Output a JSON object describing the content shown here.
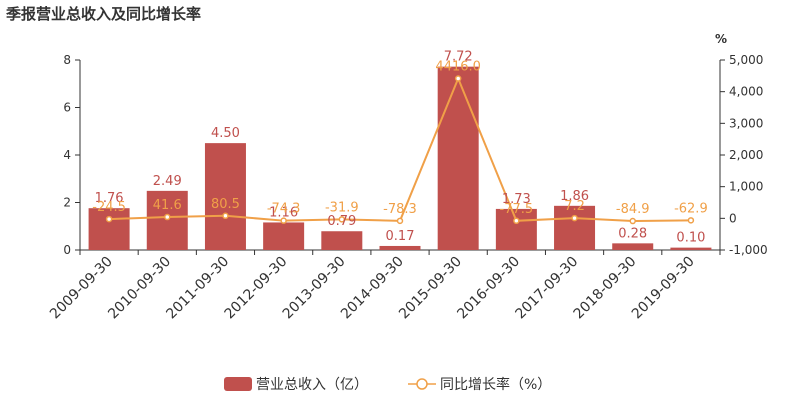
{
  "chart_data": {
    "type": "bar+line",
    "title": "季报营业总收入及同比增长率",
    "categories": [
      "2009-09-30",
      "2010-09-30",
      "2011-09-30",
      "2012-09-30",
      "2013-09-30",
      "2014-09-30",
      "2015-09-30",
      "2016-09-30",
      "2017-09-30",
      "2018-09-30",
      "2019-09-30"
    ],
    "series": [
      {
        "name": "营业总收入（亿）",
        "type": "bar",
        "axis": "left",
        "color": "#c0504d",
        "values": [
          1.76,
          2.49,
          4.5,
          1.16,
          0.79,
          0.17,
          7.72,
          1.73,
          1.86,
          0.28,
          0.1
        ],
        "labels": [
          "1.76",
          "2.49",
          "4.50",
          "1.16",
          "0.79",
          "0.17",
          "7.72",
          "1.73",
          "1.86",
          "0.28",
          "0.10"
        ]
      },
      {
        "name": "同比增长率（%）",
        "type": "line",
        "axis": "right",
        "color": "#f0a048",
        "values": [
          -24.5,
          41.6,
          80.5,
          -74.3,
          -31.9,
          -78.3,
          4416.0,
          -77.5,
          7.2,
          -84.9,
          -62.9
        ],
        "labels": [
          "-24.5",
          "41.6",
          "80.5",
          "-74.3",
          "-31.9",
          "-78.3",
          "4416.0",
          "-77.5",
          "7.2",
          "-84.9",
          "-62.9"
        ]
      }
    ],
    "y_left": {
      "min": 0,
      "max": 8,
      "ticks": [
        0,
        2,
        4,
        6,
        8
      ],
      "tick_labels": [
        "0",
        "2",
        "4",
        "6",
        "8"
      ]
    },
    "y_right": {
      "min": -1000,
      "max": 5000,
      "unit": "%",
      "ticks": [
        -1000,
        0,
        1000,
        2000,
        3000,
        4000,
        5000
      ],
      "tick_labels": [
        "-1,000",
        "0",
        "1,000",
        "2,000",
        "3,000",
        "4,000",
        "5,000"
      ]
    },
    "grid": false,
    "legend": "bottom-center"
  }
}
